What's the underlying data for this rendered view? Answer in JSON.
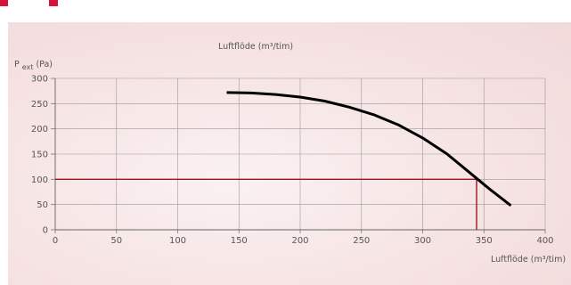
{
  "chart_data": {
    "type": "line",
    "title": "Luftflöde (m³/tim)",
    "ylabel_main": "P",
    "ylabel_sub": "ext",
    "ylabel_unit": "(Pa)",
    "xlabel": "Luftflöde (m³/tim)",
    "xlim": [
      0,
      400
    ],
    "ylim": [
      0,
      300
    ],
    "xticks": [
      "0",
      "50",
      "100",
      "150",
      "200",
      "250",
      "300",
      "350",
      "400"
    ],
    "yticks": [
      "0",
      "50",
      "100",
      "150",
      "200",
      "250",
      "300"
    ],
    "grid": true,
    "series": [
      {
        "color": "#000000",
        "points": [
          [
            140,
            272
          ],
          [
            160,
            271
          ],
          [
            180,
            268
          ],
          [
            200,
            263
          ],
          [
            220,
            255
          ],
          [
            240,
            243
          ],
          [
            260,
            228
          ],
          [
            280,
            208
          ],
          [
            300,
            182
          ],
          [
            320,
            150
          ],
          [
            340,
            110
          ],
          [
            355,
            80
          ],
          [
            372,
            48
          ]
        ]
      }
    ],
    "reference": {
      "color": "#a01024",
      "y": 100,
      "x": 344
    }
  }
}
